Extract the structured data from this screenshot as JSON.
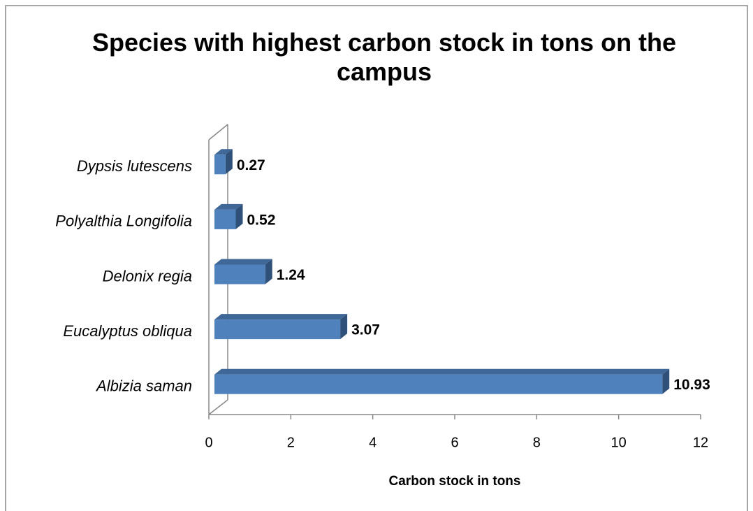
{
  "chart_data": {
    "type": "bar3d_horizontal",
    "title": "Species with highest carbon stock in tons on the campus",
    "x_label": "Carbon stock in tons",
    "categories": [
      "Albizia saman",
      "Eucalyptus obliqua",
      "Delonix regia",
      "Polyalthia Longifolia",
      "Dypsis lutescens"
    ],
    "values": [
      10.93,
      3.07,
      1.24,
      0.52,
      0.27
    ],
    "color": "#4f81bd",
    "xlim": [
      0,
      12
    ],
    "xticks": [
      0,
      2,
      4,
      6,
      8,
      10,
      12
    ],
    "grid": false
  }
}
